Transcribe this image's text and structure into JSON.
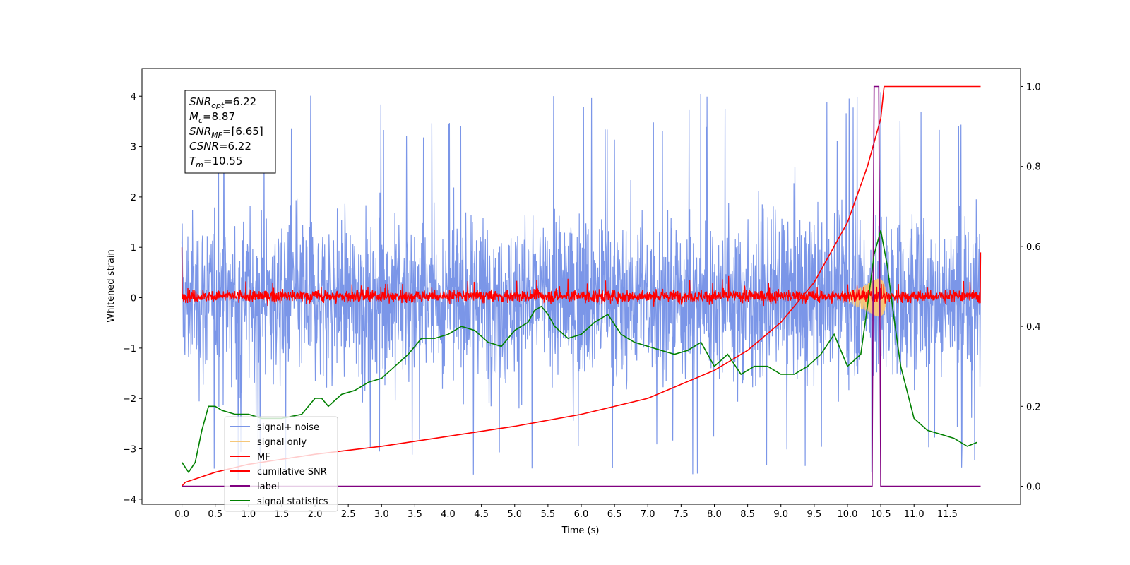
{
  "chart_data": {
    "type": "line",
    "xlabel": "Time (s)",
    "ylabel": "Whitened strain",
    "xlim": [
      -0.6,
      12.6
    ],
    "ylim_left": [
      -4.1,
      4.55
    ],
    "ylim_right": [
      -0.045,
      1.045
    ],
    "x_ticks": [
      "0.0",
      "0.5",
      "1.0",
      "1.5",
      "2.0",
      "2.5",
      "3.0",
      "3.5",
      "4.0",
      "4.5",
      "5.0",
      "5.5",
      "6.0",
      "6.5",
      "7.0",
      "7.5",
      "8.0",
      "8.5",
      "9.0",
      "9.5",
      "10.0",
      "10.5",
      "11.0",
      "11.5"
    ],
    "y_left_ticks": [
      "4",
      "3",
      "2",
      "1",
      "0",
      "−1",
      "−2",
      "−3",
      "−4"
    ],
    "y_right_ticks": [
      "1.0",
      "0.8",
      "0.6",
      "0.4",
      "0.2",
      "0.0"
    ],
    "annotation": {
      "lines": [
        {
          "main": "SNR",
          "sub": "opt",
          "value": "=6.22"
        },
        {
          "main": "M",
          "sub": "c",
          "value": "=8.87"
        },
        {
          "main": "SNR",
          "sub": "MF",
          "value": "=[6.65]"
        },
        {
          "main": "CSNR",
          "sub": "",
          "value": "=6.22"
        },
        {
          "main": "T",
          "sub": "m",
          "value": "=10.55"
        }
      ]
    },
    "legend": {
      "position": "lower left",
      "entries": [
        {
          "label": "signal+ noise",
          "color": "#7b96e8"
        },
        {
          "label": "signal only",
          "color": "#f5c77a"
        },
        {
          "label": "MF",
          "color": "#ff0000"
        },
        {
          "label": "cumilative SNR",
          "color": "#ff0000"
        },
        {
          "label": "label",
          "color": "#800080"
        },
        {
          "label": "signal statistics",
          "color": "#008000"
        }
      ]
    },
    "series": [
      {
        "name": "signal+ noise",
        "axis": "left",
        "color": "#7b96e8",
        "kind": "noise",
        "t_start": 0.0,
        "t_end": 12.0,
        "amplitude_range": [
          -3.65,
          4.15
        ],
        "typical_range": [
          -2.4,
          2.4
        ]
      },
      {
        "name": "signal only",
        "axis": "left",
        "color": "#f5c77a",
        "kind": "chirp",
        "x": [
          10.0,
          10.2,
          10.4,
          10.5,
          10.55,
          10.6
        ],
        "envelope": [
          0.1,
          0.2,
          0.35,
          0.4,
          0.3,
          0.0
        ]
      },
      {
        "name": "MF",
        "axis": "left",
        "color": "#ff0000",
        "kind": "noise",
        "t_start": 0.0,
        "t_end": 12.0,
        "amplitude_range": [
          -0.2,
          0.55
        ],
        "edge_values": [
          1.0,
          0.9
        ]
      },
      {
        "name": "cumilative SNR",
        "axis": "right",
        "color": "#ff0000",
        "x": [
          0.0,
          0.05,
          0.5,
          1.0,
          2.0,
          3.0,
          4.0,
          5.0,
          6.0,
          7.0,
          8.0,
          8.5,
          9.0,
          9.5,
          10.0,
          10.3,
          10.5,
          10.55,
          11.0,
          12.0
        ],
        "y": [
          0.0,
          0.01,
          0.035,
          0.055,
          0.08,
          0.1,
          0.125,
          0.15,
          0.18,
          0.22,
          0.29,
          0.34,
          0.41,
          0.51,
          0.66,
          0.8,
          0.92,
          1.0,
          1.0,
          1.0
        ]
      },
      {
        "name": "label",
        "axis": "right",
        "color": "#800080",
        "x": [
          0.0,
          10.37,
          10.4,
          10.47,
          10.5,
          12.0
        ],
        "y": [
          0.0,
          0.0,
          1.0,
          1.0,
          0.0,
          0.0
        ]
      },
      {
        "name": "signal statistics",
        "axis": "right",
        "color": "#008000",
        "x": [
          0.0,
          0.1,
          0.2,
          0.3,
          0.4,
          0.5,
          0.6,
          0.8,
          1.0,
          1.2,
          1.5,
          1.8,
          2.0,
          2.1,
          2.2,
          2.4,
          2.6,
          2.8,
          3.0,
          3.2,
          3.4,
          3.6,
          3.8,
          4.0,
          4.2,
          4.4,
          4.6,
          4.8,
          5.0,
          5.2,
          5.3,
          5.4,
          5.5,
          5.6,
          5.8,
          6.0,
          6.2,
          6.4,
          6.6,
          6.8,
          7.0,
          7.2,
          7.4,
          7.6,
          7.8,
          8.0,
          8.2,
          8.4,
          8.6,
          8.8,
          9.0,
          9.2,
          9.4,
          9.6,
          9.8,
          10.0,
          10.2,
          10.3,
          10.4,
          10.5,
          10.6,
          10.7,
          10.8,
          11.0,
          11.2,
          11.4,
          11.6,
          11.8,
          11.95
        ],
        "y": [
          0.06,
          0.035,
          0.06,
          0.14,
          0.2,
          0.2,
          0.19,
          0.18,
          0.18,
          0.17,
          0.17,
          0.18,
          0.22,
          0.22,
          0.2,
          0.23,
          0.24,
          0.26,
          0.27,
          0.3,
          0.33,
          0.37,
          0.37,
          0.38,
          0.4,
          0.39,
          0.36,
          0.35,
          0.39,
          0.41,
          0.44,
          0.45,
          0.43,
          0.4,
          0.37,
          0.38,
          0.41,
          0.43,
          0.38,
          0.36,
          0.35,
          0.34,
          0.33,
          0.34,
          0.36,
          0.3,
          0.33,
          0.28,
          0.3,
          0.3,
          0.28,
          0.28,
          0.3,
          0.33,
          0.38,
          0.3,
          0.33,
          0.45,
          0.58,
          0.64,
          0.55,
          0.42,
          0.3,
          0.17,
          0.14,
          0.13,
          0.12,
          0.1,
          0.11
        ]
      }
    ]
  }
}
